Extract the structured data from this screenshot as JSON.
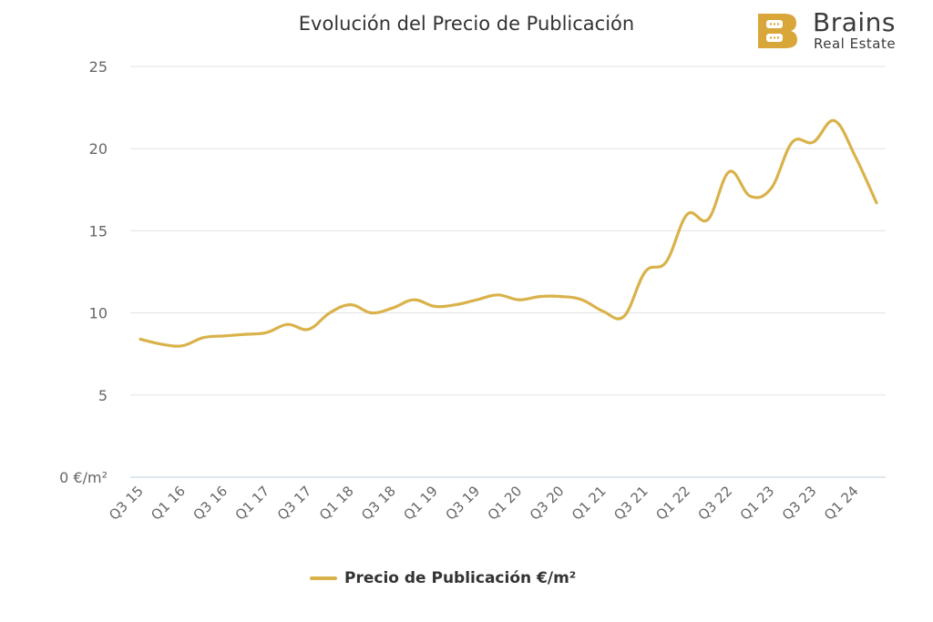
{
  "brand": {
    "name": "Brains",
    "tagline": "Real Estate",
    "color": "#D9A63A"
  },
  "chart_data": {
    "type": "line",
    "title": "Evolución del Precio de Publicación",
    "xlabel": "",
    "ylabel": "",
    "ylim": [
      0,
      25
    ],
    "yticks": [
      0,
      5,
      10,
      15,
      20,
      25
    ],
    "ytick_labels": [
      "0 €/m²",
      "5",
      "10",
      "15",
      "20",
      "25"
    ],
    "xtick_labels": [
      "Q3 15",
      "Q1 16",
      "Q3 16",
      "Q1 17",
      "Q3 17",
      "Q1 18",
      "Q3 18",
      "Q1 19",
      "Q3 19",
      "Q1 20",
      "Q3 20",
      "Q1 21",
      "Q3 21",
      "Q1 22",
      "Q3 22",
      "Q1 23",
      "Q3 23",
      "Q1 24"
    ],
    "grid": true,
    "legend_position": "bottom",
    "series": [
      {
        "name": "Precio de Publicación €/m²",
        "color": "#D9B24A",
        "categories": [
          "Q3 15",
          "Q4 15",
          "Q1 16",
          "Q2 16",
          "Q3 16",
          "Q4 16",
          "Q1 17",
          "Q2 17",
          "Q3 17",
          "Q4 17",
          "Q1 18",
          "Q2 18",
          "Q3 18",
          "Q4 18",
          "Q1 19",
          "Q2 19",
          "Q3 19",
          "Q4 19",
          "Q1 20",
          "Q2 20",
          "Q3 20",
          "Q4 20",
          "Q1 21",
          "Q2 21",
          "Q3 21",
          "Q4 21",
          "Q1 22",
          "Q2 22",
          "Q3 22",
          "Q4 22",
          "Q1 23",
          "Q2 23",
          "Q3 23",
          "Q4 23",
          "Q1 24",
          "Q2 24"
        ],
        "values": [
          8.4,
          8.1,
          8.0,
          8.5,
          8.6,
          8.7,
          8.8,
          9.3,
          9.0,
          10.0,
          10.5,
          10.0,
          10.3,
          10.8,
          10.4,
          10.5,
          10.8,
          11.1,
          10.8,
          11.0,
          11.0,
          10.8,
          10.1,
          9.8,
          12.5,
          13.1,
          16.0,
          15.7,
          18.6,
          17.1,
          17.6,
          20.4,
          20.4,
          21.7,
          19.5,
          16.7
        ]
      }
    ]
  }
}
